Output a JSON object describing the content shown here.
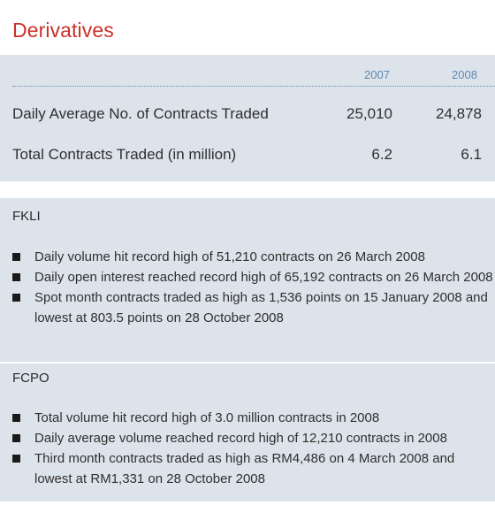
{
  "title": "Derivatives",
  "table": {
    "years": [
      "2007",
      "2008"
    ],
    "rows": [
      {
        "label": "Daily Average No. of Contracts Traded",
        "v2007": "25,010",
        "v2008": "24,878"
      },
      {
        "label": "Total Contracts Traded (in million)",
        "v2007": "6.2",
        "v2008": "6.1"
      }
    ]
  },
  "fkli": {
    "title": "FKLI",
    "bullets": [
      "Daily volume hit record high of 51,210 contracts on 26 March 2008",
      "Daily open interest reached record high of 65,192 contracts on 26 March 2008",
      "Spot month contracts traded as high as 1,536 points on 15 January 2008 and lowest at 803.5 points on 28 October 2008"
    ]
  },
  "fcpo": {
    "title": "FCPO",
    "bullets": [
      "Total volume hit record high of 3.0 million contracts in 2008",
      "Daily average volume reached record high of 12,210 contracts in 2008",
      "Third month contracts traded as high as RM4,486 on 4 March 2008 and lowest at RM1,331 on 28 October 2008"
    ]
  },
  "colors": {
    "title": "#c8312b",
    "panel": "#dde3ea",
    "year": "#5e87b0"
  }
}
